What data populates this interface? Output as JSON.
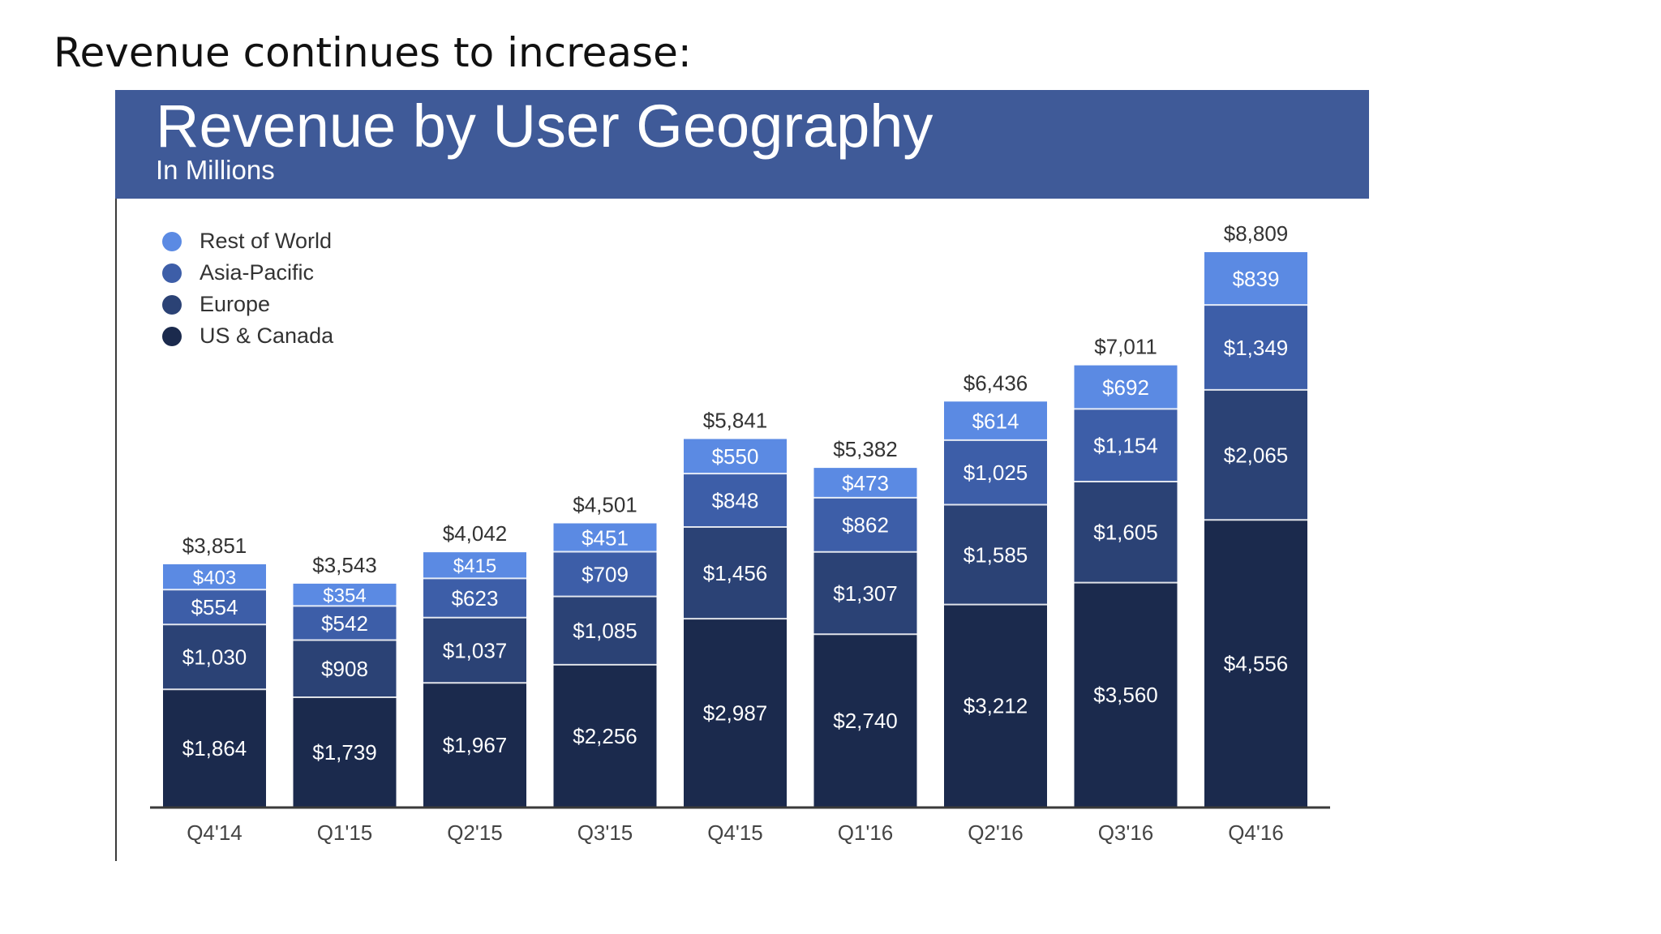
{
  "heading": "Revenue continues to increase:",
  "chart_data": {
    "type": "bar",
    "stacked": true,
    "title": "Revenue by User Geography",
    "subtitle": "In Millions",
    "categories": [
      "Q4'14",
      "Q1'15",
      "Q2'15",
      "Q3'15",
      "Q4'15",
      "Q1'16",
      "Q2'16",
      "Q3'16",
      "Q4'16"
    ],
    "series": [
      {
        "name": "US & Canada",
        "color": "#1b2a4d",
        "values": [
          1864,
          1739,
          1967,
          2256,
          2987,
          2740,
          3212,
          3560,
          4556
        ],
        "labels": [
          "$1,864",
          "$1,739",
          "$1,967",
          "$2,256",
          "$2,987",
          "$2,740",
          "$3,212",
          "$3,560",
          "$4,556"
        ]
      },
      {
        "name": "Europe",
        "color": "#2b4275",
        "values": [
          1030,
          908,
          1037,
          1085,
          1456,
          1307,
          1585,
          1605,
          2065
        ],
        "labels": [
          "$1,030",
          "$908",
          "$1,037",
          "$1,085",
          "$1,456",
          "$1,307",
          "$1,585",
          "$1,605",
          "$2,065"
        ]
      },
      {
        "name": "Asia-Pacific",
        "color": "#3d5ea8",
        "values": [
          554,
          542,
          623,
          709,
          848,
          862,
          1025,
          1154,
          1349
        ],
        "labels": [
          "$554",
          "$542",
          "$623",
          "$709",
          "$848",
          "$862",
          "$1,025",
          "$1,154",
          "$1,349"
        ]
      },
      {
        "name": "Rest of World",
        "color": "#5b8ae3",
        "values": [
          403,
          354,
          415,
          451,
          550,
          473,
          614,
          692,
          839
        ],
        "labels": [
          "$403",
          "$354",
          "$415",
          "$451",
          "$550",
          "$473",
          "$614",
          "$692",
          "$839"
        ]
      }
    ],
    "totals": [
      "$3,851",
      "$3,543",
      "$4,042",
      "$4,501",
      "$5,841",
      "$5,382",
      "$6,436",
      "$7,011",
      "$8,809"
    ],
    "total_values": [
      3851,
      3543,
      4042,
      4501,
      5841,
      5382,
      6436,
      7011,
      8809
    ],
    "legend_order": [
      "Rest of World",
      "Asia-Pacific",
      "Europe",
      "US & Canada"
    ],
    "legend_position": "top-left",
    "grid": false,
    "ylim": [
      0,
      8809
    ]
  }
}
